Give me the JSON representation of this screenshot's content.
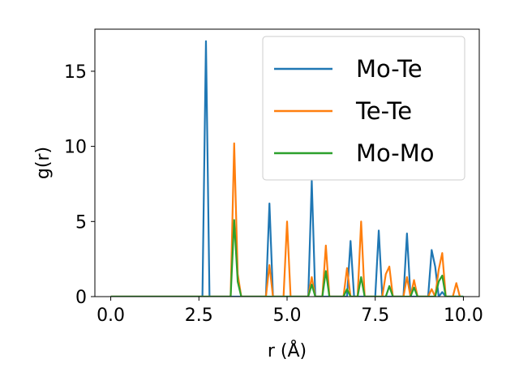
{
  "chart_data": {
    "type": "line",
    "title": "",
    "xlabel": "r (Å)",
    "ylabel": "g(r)",
    "xlim": [
      -0.45,
      10.45
    ],
    "ylim": [
      0,
      17.8
    ],
    "xticks": [
      0.0,
      2.5,
      5.0,
      7.5,
      10.0
    ],
    "xtick_labels": [
      "0.0",
      "2.5",
      "5.0",
      "7.5",
      "10.0"
    ],
    "yticks": [
      0,
      5,
      10,
      15
    ],
    "ytick_labels": [
      "0",
      "5",
      "10",
      "15"
    ],
    "grid": false,
    "legend_position": "top-right",
    "series": [
      {
        "name": "Mo-Te",
        "color": "#1f77b4",
        "x": [
          0.0,
          2.6,
          2.7,
          2.8,
          4.4,
          4.5,
          4.6,
          5.6,
          5.7,
          5.8,
          6.7,
          6.8,
          6.9,
          7.5,
          7.6,
          7.7,
          8.3,
          8.4,
          8.5,
          9.0,
          9.1,
          9.2,
          9.3,
          9.4,
          9.5,
          10.0
        ],
        "y": [
          0,
          0,
          17.0,
          0,
          0,
          6.2,
          0,
          0,
          7.7,
          0,
          0,
          3.7,
          0,
          0,
          4.4,
          0,
          0,
          4.2,
          0,
          0,
          3.1,
          2.0,
          0,
          0.3,
          0,
          0
        ]
      },
      {
        "name": "Te-Te",
        "color": "#ff7f0e",
        "x": [
          0.0,
          3.4,
          3.5,
          3.6,
          3.7,
          4.4,
          4.5,
          4.6,
          4.9,
          5.0,
          5.1,
          5.6,
          5.7,
          5.8,
          6.0,
          6.1,
          6.2,
          6.6,
          6.7,
          6.8,
          7.0,
          7.1,
          7.2,
          7.7,
          7.8,
          7.9,
          8.0,
          8.3,
          8.4,
          8.5,
          8.6,
          8.7,
          9.0,
          9.1,
          9.2,
          9.3,
          9.4,
          9.5,
          9.7,
          9.8,
          9.9
        ],
        "y": [
          0,
          0,
          10.2,
          1.5,
          0,
          0,
          2.1,
          0,
          0,
          5.0,
          0,
          0,
          1.3,
          0,
          0,
          3.4,
          0,
          0,
          1.9,
          0,
          0,
          5.0,
          0,
          0,
          1.5,
          2.0,
          0,
          0,
          1.3,
          0,
          1.1,
          0,
          0,
          0.5,
          0,
          1.8,
          2.9,
          0,
          0,
          0.9,
          0
        ]
      },
      {
        "name": "Mo-Mo",
        "color": "#2ca02c",
        "x": [
          0.0,
          3.4,
          3.5,
          3.6,
          3.7,
          5.6,
          5.7,
          5.8,
          6.0,
          6.1,
          6.2,
          6.6,
          6.7,
          6.8,
          7.0,
          7.1,
          7.2,
          7.8,
          7.9,
          8.0,
          8.5,
          8.6,
          8.7,
          9.2,
          9.3,
          9.4,
          9.5,
          10.0
        ],
        "y": [
          0,
          0,
          5.1,
          1.0,
          0,
          0,
          0.8,
          0,
          0,
          1.7,
          0,
          0,
          0.5,
          0,
          0,
          1.3,
          0,
          0,
          0.7,
          0,
          0,
          0.6,
          0,
          0,
          1.0,
          1.4,
          0,
          0
        ]
      }
    ]
  }
}
